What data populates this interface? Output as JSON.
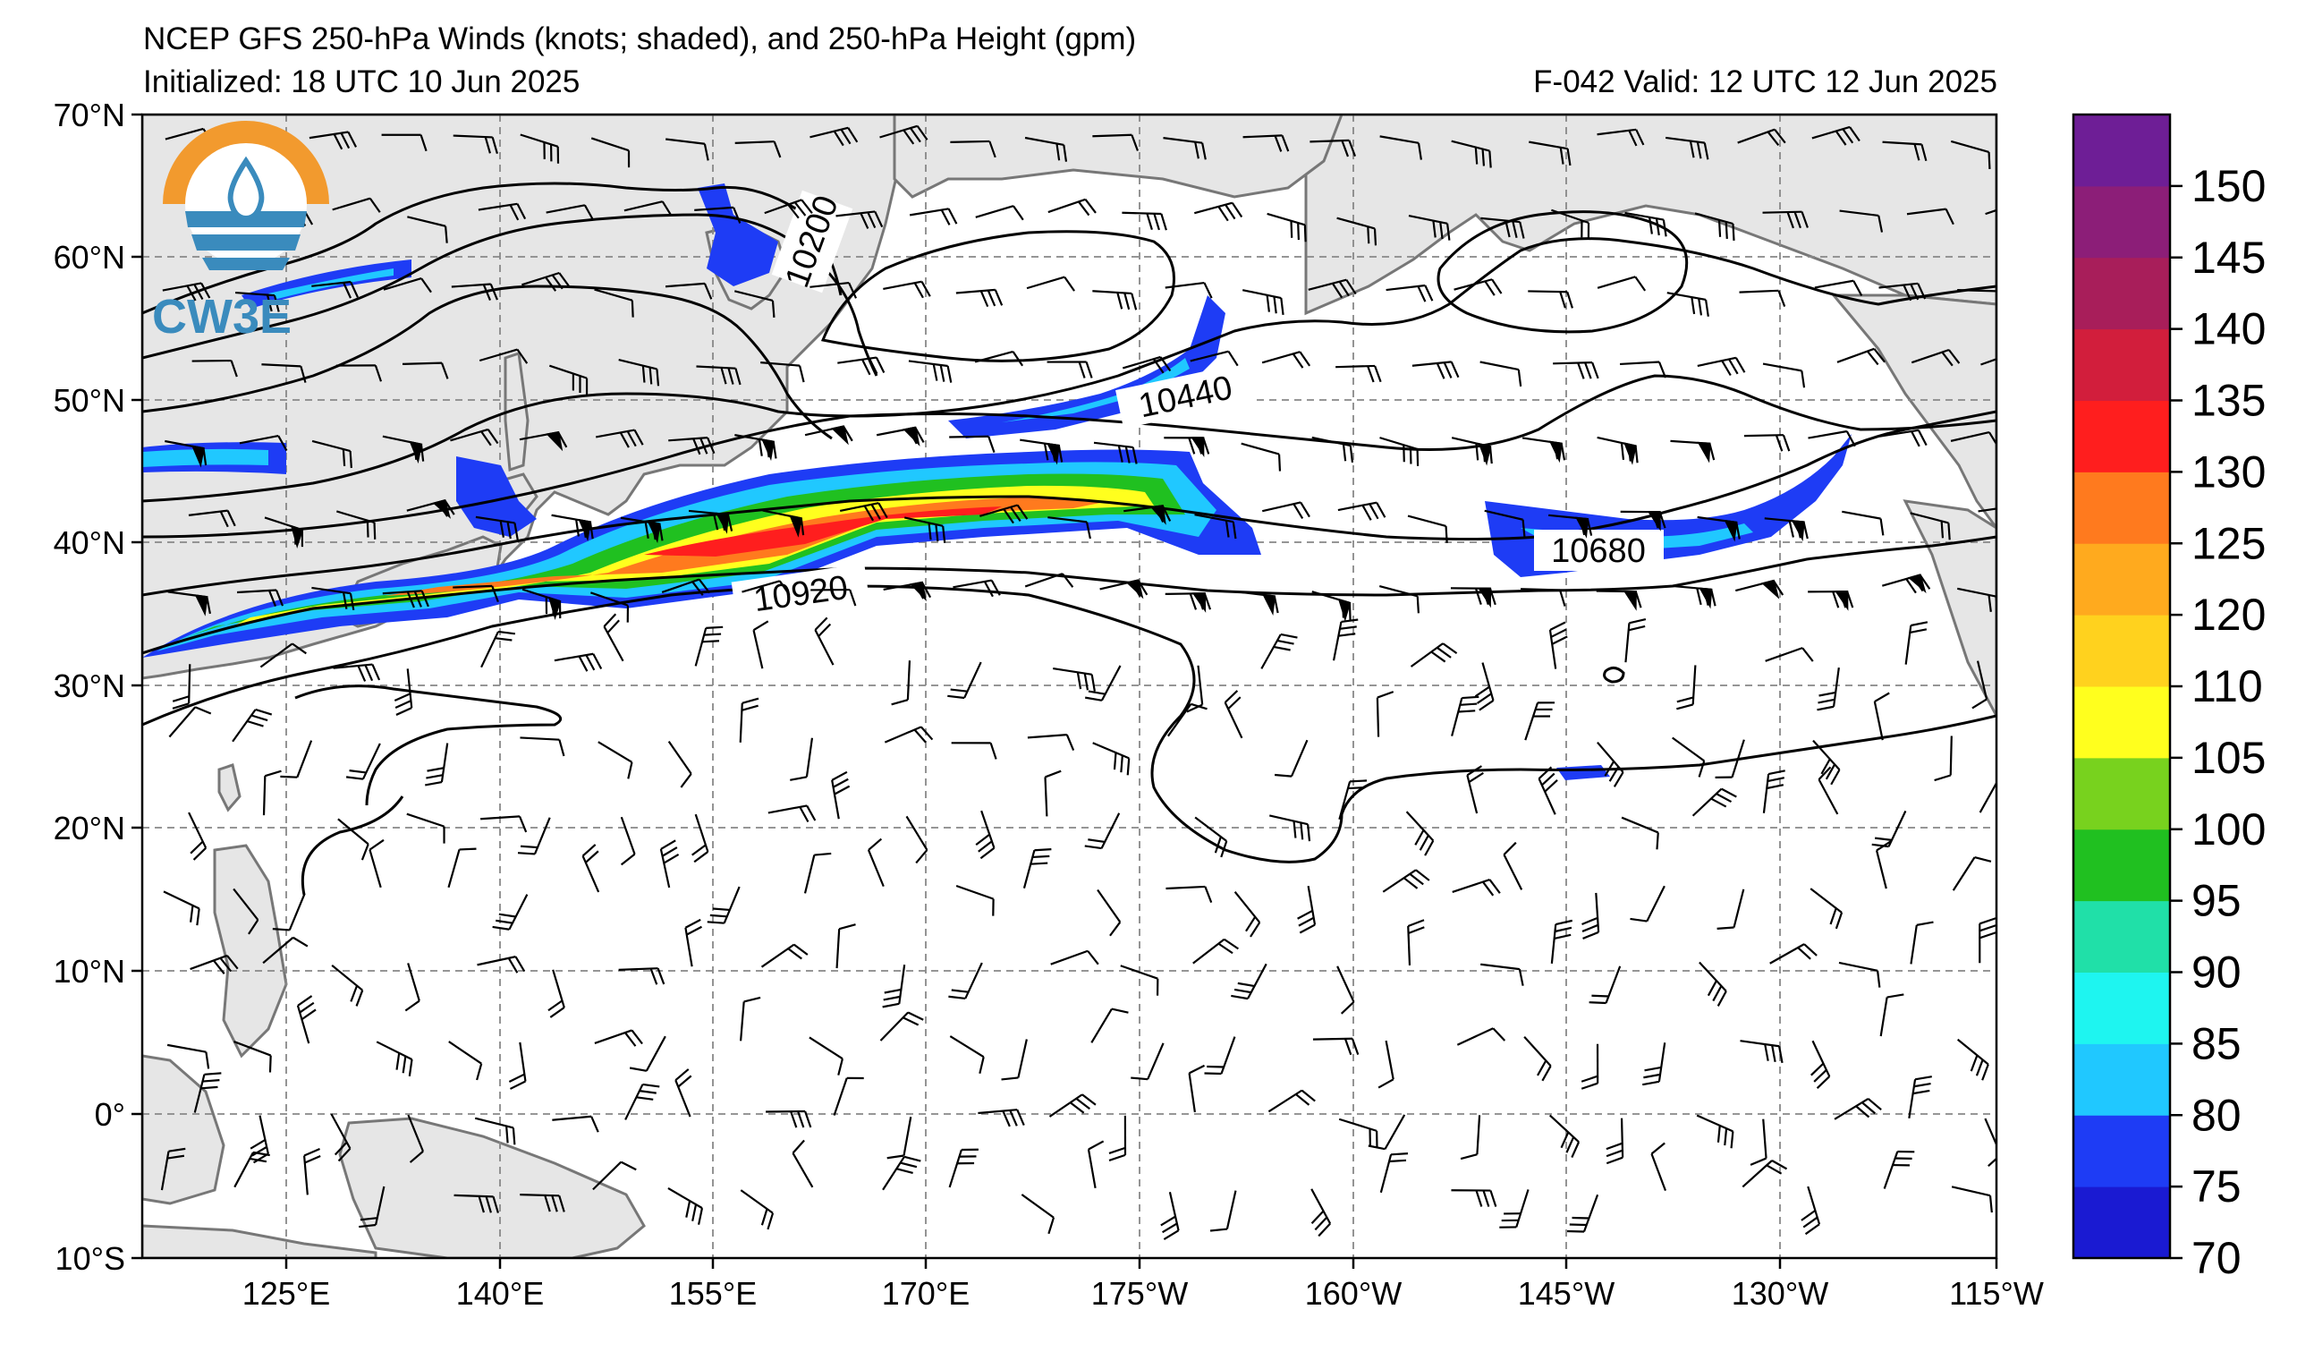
{
  "header": {
    "title": "NCEP GFS 250-hPa Winds (knots; shaded), and 250-hPa Height (gpm)",
    "initialized": "Initialized: 18 UTC 10 Jun 2025",
    "valid": "F-042  Valid: 12 UTC 12 Jun 2025"
  },
  "logo": {
    "text": "CW3E"
  },
  "map": {
    "lat_labels": [
      "70°N",
      "60°N",
      "50°N",
      "40°N",
      "30°N",
      "20°N",
      "10°N",
      "0°",
      "10°S"
    ],
    "lon_labels": [
      "125°E",
      "140°E",
      "155°E",
      "170°E",
      "175°W",
      "160°W",
      "145°W",
      "130°W",
      "115°W"
    ],
    "contour_labels": [
      "10200",
      "10440",
      "10920",
      "10680"
    ],
    "gridline_color": "#888888",
    "land_color": "#e6e6e6",
    "coast_color": "#777777"
  },
  "colorbar": {
    "labels": [
      "70",
      "75",
      "80",
      "85",
      "90",
      "95",
      "100",
      "105",
      "110",
      "120",
      "125",
      "130",
      "135",
      "140",
      "145",
      "150"
    ],
    "colors": [
      "#1a1ad2",
      "#1e3cf5",
      "#20c8ff",
      "#1ef5f0",
      "#20e0a8",
      "#20c020",
      "#78d21e",
      "#ffff1e",
      "#ffd21e",
      "#ffaa1e",
      "#ff7a1e",
      "#ff1e1e",
      "#d21e3c",
      "#a81e5a",
      "#8c1e78",
      "#6e1e96"
    ]
  }
}
